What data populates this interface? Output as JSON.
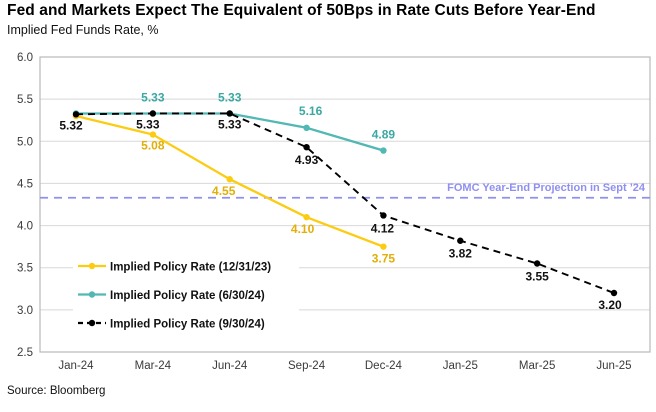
{
  "title": "Fed and Markets Expect The Equivalent of 50Bps in Rate Cuts Before Year-End",
  "subtitle": "Implied Fed Funds Rate, %",
  "source": "Source: Bloomberg",
  "chart_data": {
    "type": "line",
    "categories": [
      "Jan-24",
      "Mar-24",
      "Jun-24",
      "Sep-24",
      "Dec-24",
      "Jan-25",
      "Mar-25",
      "Jun-25"
    ],
    "ylim": [
      2.5,
      6.0
    ],
    "y_tick_step": 0.5,
    "y_tick_labels": [
      "6.0",
      "5.5",
      "5.0",
      "4.5",
      "4.0",
      "3.5",
      "3.0",
      "2.5"
    ],
    "grid": true,
    "legend_position": "inside-bottom-left",
    "series": [
      {
        "name": "Implied Policy Rate (12/31/23)",
        "color": "#FCCC12",
        "label_color": "#E2AE07",
        "dash": null,
        "values": [
          5.3,
          5.08,
          4.55,
          4.1,
          3.75,
          null,
          null,
          null
        ],
        "labels": [
          null,
          {
            "text": "5.08",
            "dx": 0,
            "dy": 15
          },
          {
            "text": "4.55",
            "dx": -6,
            "dy": 16
          },
          {
            "text": "4.10",
            "dx": -4,
            "dy": 16
          },
          {
            "text": "3.75",
            "dx": 0,
            "dy": 16
          },
          null,
          null,
          null
        ]
      },
      {
        "name": "Implied Policy Rate (6/30/24)",
        "color": "#52B8B3",
        "label_color": "#3AA8A3",
        "dash": null,
        "values": [
          5.33,
          5.33,
          5.33,
          5.16,
          4.89,
          null,
          null,
          null
        ],
        "labels": [
          null,
          {
            "text": "5.33",
            "dx": 0,
            "dy": -12
          },
          {
            "text": "5.33",
            "dx": 0,
            "dy": -12
          },
          {
            "text": "5.16",
            "dx": 4,
            "dy": -13
          },
          {
            "text": "4.89",
            "dx": 0,
            "dy": -12
          },
          null,
          null,
          null
        ]
      },
      {
        "name": "Implied Policy Rate (9/30/24)",
        "color": "#000000",
        "label_color": "#111111",
        "dash": "7 5",
        "values": [
          5.32,
          5.33,
          5.33,
          4.93,
          4.12,
          3.82,
          3.55,
          3.2
        ],
        "labels": [
          {
            "text": "5.32",
            "dx": -5,
            "dy": 15
          },
          {
            "text": "5.33",
            "dx": -5,
            "dy": 15
          },
          {
            "text": "5.33",
            "dx": 0,
            "dy": 15
          },
          {
            "text": "4.93",
            "dx": 0,
            "dy": 17
          },
          {
            "text": "4.12",
            "dx": -1,
            "dy": 17
          },
          {
            "text": "3.82",
            "dx": 0,
            "dy": 17
          },
          {
            "text": "3.55",
            "dx": 0,
            "dy": 17
          },
          {
            "text": "3.20",
            "dx": -4,
            "dy": 16
          }
        ]
      }
    ],
    "reference_line": {
      "label": "FOMC Year-End Projection in Sept ’24",
      "value": 4.33,
      "color": "#8F8FF2"
    }
  }
}
